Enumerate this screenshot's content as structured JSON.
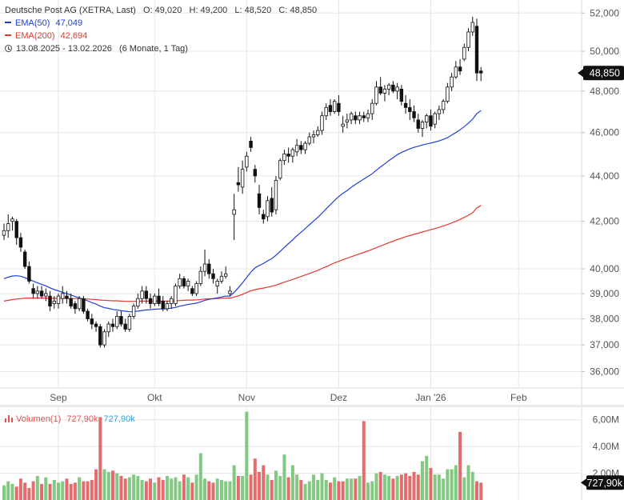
{
  "header": {
    "title": "Deutsche Post AG (XETRA, Last)",
    "ohlc": "O: 49,020   H: 49,200   L: 48,520   C: 48,850",
    "ema50_label": "EMA(50)",
    "ema50_value": "47,049",
    "ema200_label": "EMA(200)",
    "ema200_value": "42,694",
    "range": "13.08.2025 - 13.02.2026",
    "range_detail": "(6 Monate, 1 Tag)"
  },
  "volume_legend": {
    "label": "Volumen(1)",
    "value_red": "727,90k",
    "value_blue": "727,90k"
  },
  "colors": {
    "up": "#6cbf6c",
    "down": "#e05252",
    "ema50": "#1f3fd6",
    "ema200": "#e03a2f",
    "price_tag_bg": "#111111",
    "grid": "#e6e6e6"
  },
  "chart_data": [
    {
      "type": "candlestick",
      "title": "Deutsche Post AG (XETRA, Last)",
      "y_scale": "log",
      "ylim": [
        35.4,
        52.7
      ],
      "y_ticks": [
        "52,000",
        "50,000",
        "48,000",
        "46,000",
        "44,000",
        "42,000",
        "40,000",
        "39,000",
        "38,000",
        "37,000",
        "36,000"
      ],
      "y_tick_values": [
        52,
        50,
        48,
        46,
        44,
        42,
        40,
        39,
        38,
        37,
        36
      ],
      "x_labels": [
        "Sep",
        "Okt",
        "Nov",
        "Dez",
        "Jan '26",
        "Feb"
      ],
      "x_label_index": [
        13,
        36,
        58,
        80,
        102,
        123
      ],
      "last_price_label": "48,850",
      "candles": [
        [
          41.4,
          41.9,
          41.2,
          41.6
        ],
        [
          41.6,
          42.3,
          41.3,
          41.9
        ],
        [
          42.0,
          42.2,
          41.6,
          42.1
        ],
        [
          42.0,
          42.1,
          41.0,
          41.3
        ],
        [
          41.3,
          41.5,
          40.7,
          40.9
        ],
        [
          40.7,
          40.8,
          40.0,
          40.1
        ],
        [
          40.1,
          40.3,
          39.4,
          39.5
        ],
        [
          39.2,
          39.4,
          38.8,
          39.0
        ],
        [
          39.0,
          39.3,
          38.8,
          39.1
        ],
        [
          39.1,
          39.3,
          38.8,
          38.9
        ],
        [
          38.9,
          39.2,
          38.7,
          39.0
        ],
        [
          38.9,
          39.1,
          38.3,
          38.5
        ],
        [
          38.6,
          38.9,
          38.4,
          38.7
        ],
        [
          38.6,
          39.0,
          38.4,
          38.9
        ],
        [
          38.8,
          39.3,
          38.6,
          39.0
        ],
        [
          38.9,
          39.1,
          38.6,
          38.8
        ],
        [
          38.8,
          39.0,
          38.4,
          38.5
        ],
        [
          38.6,
          38.7,
          38.2,
          38.4
        ],
        [
          38.4,
          38.9,
          38.3,
          38.8
        ],
        [
          38.8,
          38.9,
          38.2,
          38.3
        ],
        [
          38.3,
          38.4,
          37.9,
          38.0
        ],
        [
          38.0,
          38.2,
          37.6,
          37.8
        ],
        [
          37.8,
          37.9,
          37.5,
          37.7
        ],
        [
          37.7,
          37.8,
          36.9,
          37.0
        ],
        [
          37.0,
          37.6,
          36.9,
          37.5
        ],
        [
          37.5,
          37.9,
          37.3,
          37.8
        ],
        [
          37.8,
          38.0,
          37.5,
          37.7
        ],
        [
          37.7,
          38.3,
          37.6,
          38.1
        ],
        [
          38.1,
          38.3,
          37.7,
          37.8
        ],
        [
          37.8,
          38.0,
          37.5,
          37.6
        ],
        [
          37.6,
          38.2,
          37.5,
          38.1
        ],
        [
          38.1,
          38.6,
          38.0,
          38.5
        ],
        [
          38.5,
          39.0,
          38.4,
          38.8
        ],
        [
          38.8,
          39.3,
          38.6,
          39.1
        ],
        [
          39.1,
          39.3,
          38.6,
          38.8
        ],
        [
          38.8,
          39.0,
          38.4,
          38.6
        ],
        [
          38.6,
          39.0,
          38.5,
          38.9
        ],
        [
          38.9,
          39.2,
          38.5,
          38.6
        ],
        [
          38.7,
          38.9,
          38.3,
          38.4
        ],
        [
          38.4,
          38.7,
          38.3,
          38.6
        ],
        [
          38.6,
          38.9,
          38.4,
          38.8
        ],
        [
          38.6,
          39.4,
          38.5,
          39.3
        ],
        [
          39.3,
          39.8,
          39.2,
          39.6
        ],
        [
          39.6,
          39.7,
          39.2,
          39.3
        ],
        [
          39.3,
          39.6,
          39.1,
          39.5
        ],
        [
          39.2,
          39.3,
          38.9,
          39.0
        ],
        [
          39.0,
          39.5,
          38.9,
          39.4
        ],
        [
          39.4,
          40.1,
          39.3,
          39.9
        ],
        [
          39.9,
          40.8,
          39.7,
          40.2
        ],
        [
          40.2,
          40.4,
          39.6,
          39.8
        ],
        [
          39.8,
          40.0,
          39.4,
          39.6
        ],
        [
          39.3,
          39.6,
          39.0,
          39.5
        ],
        [
          39.5,
          39.9,
          39.4,
          39.7
        ],
        [
          39.7,
          40.1,
          39.6,
          39.8
        ],
        [
          39.0,
          39.3,
          38.9,
          39.1
        ],
        [
          42.3,
          43.2,
          41.2,
          42.5
        ],
        [
          43.7,
          44.4,
          43.3,
          43.6
        ],
        [
          43.5,
          44.7,
          43.2,
          44.3
        ],
        [
          44.4,
          45.1,
          44.2,
          44.9
        ],
        [
          45.6,
          45.8,
          45.1,
          45.3
        ],
        [
          44.3,
          44.5,
          43.7,
          44.0
        ],
        [
          43.2,
          43.6,
          42.3,
          42.6
        ],
        [
          42.3,
          42.5,
          41.9,
          42.1
        ],
        [
          42.2,
          43.1,
          42.0,
          42.9
        ],
        [
          43.0,
          43.5,
          42.2,
          42.4
        ],
        [
          42.5,
          44.0,
          42.3,
          43.8
        ],
        [
          43.9,
          44.8,
          43.8,
          44.7
        ],
        [
          44.7,
          45.2,
          44.5,
          45.0
        ],
        [
          45.0,
          45.3,
          44.6,
          44.9
        ],
        [
          44.9,
          45.3,
          44.6,
          45.2
        ],
        [
          45.1,
          45.7,
          44.9,
          45.4
        ],
        [
          45.4,
          45.6,
          45.0,
          45.2
        ],
        [
          45.2,
          45.6,
          45.0,
          45.5
        ],
        [
          45.5,
          46.0,
          45.4,
          45.8
        ],
        [
          45.8,
          46.1,
          45.5,
          45.9
        ],
        [
          45.9,
          46.3,
          45.8,
          46.1
        ],
        [
          46.1,
          47.0,
          45.9,
          46.8
        ],
        [
          46.8,
          47.4,
          46.6,
          47.2
        ],
        [
          47.3,
          47.6,
          46.8,
          47.0
        ],
        [
          47.0,
          47.6,
          46.9,
          47.5
        ],
        [
          47.4,
          47.8,
          46.8,
          47.0
        ],
        [
          46.3,
          46.8,
          46.0,
          46.4
        ],
        [
          46.5,
          46.9,
          46.2,
          46.6
        ],
        [
          46.6,
          47.0,
          46.4,
          46.9
        ],
        [
          46.8,
          47.0,
          46.4,
          46.6
        ],
        [
          46.6,
          47.0,
          46.4,
          46.8
        ],
        [
          46.8,
          47.0,
          46.5,
          46.7
        ],
        [
          46.7,
          47.1,
          46.5,
          46.9
        ],
        [
          46.9,
          47.6,
          46.6,
          47.4
        ],
        [
          47.4,
          48.5,
          47.3,
          48.2
        ],
        [
          48.2,
          48.7,
          47.8,
          47.9
        ],
        [
          47.9,
          48.3,
          47.5,
          48.1
        ],
        [
          48.1,
          48.4,
          47.8,
          48.3
        ],
        [
          48.3,
          48.5,
          47.9,
          48.0
        ],
        [
          48.0,
          48.4,
          47.6,
          48.2
        ],
        [
          48.1,
          48.3,
          47.3,
          47.5
        ],
        [
          47.4,
          47.8,
          46.9,
          47.2
        ],
        [
          47.2,
          47.6,
          46.6,
          47.0
        ],
        [
          47.0,
          47.3,
          46.5,
          46.7
        ],
        [
          46.6,
          46.9,
          46.0,
          46.2
        ],
        [
          46.2,
          46.6,
          45.8,
          46.5
        ],
        [
          46.5,
          46.9,
          46.2,
          46.8
        ],
        [
          46.8,
          47.1,
          46.1,
          46.3
        ],
        [
          46.4,
          47.0,
          46.2,
          46.9
        ],
        [
          46.9,
          47.3,
          46.6,
          47.1
        ],
        [
          47.1,
          47.6,
          46.9,
          47.5
        ],
        [
          47.5,
          48.4,
          47.4,
          48.2
        ],
        [
          48.2,
          48.9,
          48.0,
          48.7
        ],
        [
          48.7,
          49.5,
          48.6,
          49.2
        ],
        [
          49.2,
          49.6,
          48.8,
          49.0
        ],
        [
          49.6,
          50.4,
          49.5,
          50.2
        ],
        [
          50.2,
          51.2,
          50.0,
          51.0
        ],
        [
          51.0,
          51.8,
          50.8,
          51.5
        ],
        [
          51.3,
          51.7,
          48.5,
          48.9
        ],
        [
          49.0,
          49.2,
          48.5,
          48.9
        ]
      ],
      "ema50": [
        39.6,
        39.66,
        39.71,
        39.72,
        39.7,
        39.64,
        39.57,
        39.5,
        39.43,
        39.37,
        39.31,
        39.23,
        39.16,
        39.11,
        39.05,
        39.0,
        38.94,
        38.88,
        38.83,
        38.77,
        38.71,
        38.64,
        38.58,
        38.5,
        38.44,
        38.41,
        38.37,
        38.35,
        38.32,
        38.3,
        38.28,
        38.29,
        38.3,
        38.33,
        38.35,
        38.36,
        38.38,
        38.39,
        38.39,
        38.4,
        38.42,
        38.45,
        38.5,
        38.53,
        38.57,
        38.59,
        38.62,
        38.67,
        38.73,
        38.77,
        38.8,
        38.83,
        38.86,
        38.9,
        38.9,
        39.05,
        39.23,
        39.43,
        39.65,
        39.87,
        40.04,
        40.14,
        40.22,
        40.33,
        40.42,
        40.56,
        40.72,
        40.89,
        41.05,
        41.21,
        41.38,
        41.53,
        41.69,
        41.85,
        42.01,
        42.17,
        42.35,
        42.54,
        42.72,
        42.91,
        43.08,
        43.22,
        43.35,
        43.49,
        43.62,
        43.74,
        43.86,
        43.98,
        44.1,
        44.26,
        44.41,
        44.55,
        44.7,
        44.83,
        44.97,
        45.07,
        45.16,
        45.24,
        45.31,
        45.36,
        45.42,
        45.47,
        45.51,
        45.56,
        45.61,
        45.68,
        45.76,
        45.88,
        46.0,
        46.13,
        46.28,
        46.45,
        46.64,
        46.9,
        47.05
      ],
      "ema200": [
        38.7,
        38.73,
        38.76,
        38.78,
        38.8,
        38.81,
        38.82,
        38.82,
        38.82,
        38.82,
        38.82,
        38.81,
        38.81,
        38.81,
        38.81,
        38.81,
        38.8,
        38.8,
        38.8,
        38.79,
        38.78,
        38.77,
        38.76,
        38.74,
        38.73,
        38.72,
        38.71,
        38.71,
        38.7,
        38.69,
        38.69,
        38.69,
        38.69,
        38.7,
        38.7,
        38.7,
        38.7,
        38.7,
        38.7,
        38.7,
        38.7,
        38.71,
        38.72,
        38.73,
        38.74,
        38.74,
        38.75,
        38.76,
        38.78,
        38.79,
        38.79,
        38.8,
        38.81,
        38.82,
        38.82,
        38.86,
        38.91,
        38.97,
        39.04,
        39.11,
        39.16,
        39.19,
        39.22,
        39.26,
        39.29,
        39.34,
        39.4,
        39.46,
        39.51,
        39.57,
        39.63,
        39.69,
        39.75,
        39.81,
        39.88,
        39.94,
        40.02,
        40.09,
        40.17,
        40.25,
        40.31,
        40.38,
        40.44,
        40.5,
        40.56,
        40.62,
        40.68,
        40.74,
        40.81,
        40.88,
        40.95,
        41.02,
        41.09,
        41.15,
        41.22,
        41.28,
        41.34,
        41.39,
        41.44,
        41.49,
        41.54,
        41.59,
        41.64,
        41.69,
        41.74,
        41.8,
        41.86,
        41.93,
        42.0,
        42.08,
        42.17,
        42.26,
        42.37,
        42.58,
        42.69
      ]
    },
    {
      "type": "bar",
      "title": "Volumen(1)",
      "ylim": [
        0,
        7.0
      ],
      "y_ticks": [
        "6,00M",
        "4,00M",
        "2,00M"
      ],
      "y_tick_values": [
        6,
        4,
        2
      ],
      "last_value_label": "727,90k",
      "values": [
        1.1,
        1.4,
        1.2,
        1.0,
        1.6,
        1.3,
        0.9,
        1.4,
        1.8,
        1.2,
        1.7,
        1.2,
        1.5,
        1.3,
        1.4,
        1.6,
        1.2,
        1.3,
        1.7,
        1.4,
        1.4,
        1.5,
        2.3,
        6.2,
        2.3,
        2.1,
        2.2,
        2.0,
        1.8,
        1.6,
        1.7,
        1.9,
        1.8,
        1.5,
        1.4,
        1.6,
        1.3,
        1.7,
        1.5,
        1.8,
        1.6,
        1.7,
        1.4,
        1.9,
        1.7,
        1.3,
        1.9,
        3.5,
        1.6,
        1.4,
        1.3,
        1.6,
        1.5,
        1.4,
        1.4,
        2.6,
        1.8,
        1.8,
        6.6,
        1.9,
        3.1,
        2.1,
        2.6,
        1.9,
        1.5,
        2.2,
        1.8,
        3.4,
        1.7,
        2.6,
        1.9,
        1.5,
        1.2,
        1.4,
        1.9,
        1.5,
        2.0,
        1.5,
        1.3,
        1.7,
        1.4,
        1.4,
        1.6,
        1.6,
        1.6,
        1.8,
        5.9,
        1.3,
        1.4,
        2.0,
        2.1,
        1.9,
        1.8,
        1.6,
        1.8,
        1.9,
        2.0,
        1.8,
        2.1,
        1.9,
        2.9,
        3.3,
        2.4,
        1.9,
        1.9,
        1.6,
        2.3,
        2.3,
        2.6,
        5.1,
        1.7,
        2.6,
        2.1,
        1.4,
        1.3
      ],
      "up": [
        1,
        1,
        1,
        0,
        0,
        0,
        0,
        0,
        1,
        0,
        1,
        0,
        1,
        1,
        1,
        0,
        0,
        0,
        1,
        0,
        0,
        0,
        0,
        0,
        1,
        1,
        0,
        1,
        0,
        0,
        1,
        1,
        1,
        1,
        0,
        0,
        1,
        0,
        0,
        1,
        1,
        1,
        1,
        0,
        1,
        0,
        1,
        1,
        1,
        0,
        0,
        1,
        1,
        1,
        1,
        1,
        0,
        1,
        1,
        0,
        0,
        0,
        0,
        1,
        0,
        1,
        1,
        1,
        0,
        1,
        1,
        0,
        1,
        1,
        1,
        1,
        1,
        1,
        0,
        1,
        0,
        0,
        1,
        1,
        0,
        1,
        0,
        1,
        1,
        1,
        0,
        1,
        1,
        0,
        1,
        0,
        0,
        0,
        0,
        0,
        1,
        1,
        0,
        1,
        1,
        1,
        1,
        1,
        1,
        0,
        1,
        1,
        1,
        0,
        0
      ]
    }
  ]
}
